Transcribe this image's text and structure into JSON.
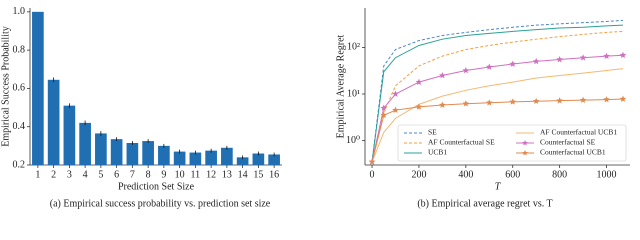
{
  "chart_data": [
    {
      "type": "bar",
      "caption": "(a) Empirical success probability vs. prediction set size",
      "xlabel": "Prediction Set Size",
      "ylabel": "Empirical Success Probability",
      "categories": [
        "1",
        "2",
        "3",
        "4",
        "5",
        "6",
        "7",
        "8",
        "9",
        "10",
        "11",
        "12",
        "13",
        "14",
        "15",
        "16"
      ],
      "values": [
        1.0,
        0.645,
        0.51,
        0.42,
        0.365,
        0.335,
        0.315,
        0.325,
        0.3,
        0.27,
        0.265,
        0.275,
        0.29,
        0.24,
        0.26,
        0.255
      ],
      "errors": [
        0,
        0.012,
        0.012,
        0.012,
        0.012,
        0.01,
        0.01,
        0.01,
        0.01,
        0.01,
        0.01,
        0.01,
        0.01,
        0.01,
        0.01,
        0.01
      ],
      "color": "#1f6fb2",
      "ylim": [
        0.2,
        1.02
      ],
      "yticks": [
        0.2,
        0.4,
        0.6,
        0.8,
        {
          "value": 1,
          "label": "1.0"
        }
      ]
    },
    {
      "type": "line",
      "caption": "(b) Empirical average regret vs. T",
      "xlabel": "T",
      "ylabel": "Empirical Average Regret",
      "log_y": true,
      "legend": "lower right",
      "x": [
        0,
        50,
        100,
        200,
        300,
        400,
        500,
        600,
        700,
        800,
        900,
        1000,
        1070
      ],
      "xlim": [
        -30,
        1100
      ],
      "xticks": [
        0,
        200,
        400,
        600,
        800,
        1000
      ],
      "ylim": [
        0.3,
        700
      ],
      "yticks": [
        {
          "value": 1,
          "label": "10⁰"
        },
        {
          "value": 10,
          "label": "10¹"
        },
        {
          "value": 100,
          "label": "10²"
        }
      ],
      "series": [
        {
          "name": "SE",
          "color": "#4a86c8",
          "dash": "dashed",
          "values": [
            0.35,
            40,
            90,
            140,
            180,
            210,
            240,
            270,
            300,
            320,
            340,
            360,
            380
          ]
        },
        {
          "name": "AF Counterfactual SE",
          "color": "#f0a040",
          "dash": "dashed",
          "values": [
            0.35,
            4,
            15,
            40,
            65,
            90,
            110,
            130,
            150,
            170,
            190,
            210,
            220
          ]
        },
        {
          "name": "UCB1",
          "color": "#2aa198",
          "dash": "solid",
          "values": [
            0.35,
            30,
            60,
            110,
            150,
            180,
            200,
            220,
            240,
            260,
            270,
            290,
            300
          ]
        },
        {
          "name": "AF Counterfactual UCB1",
          "color": "#f5b870",
          "dash": "solid",
          "values": [
            0.35,
            1.5,
            3,
            6,
            9,
            12,
            15,
            18,
            22,
            25,
            28,
            32,
            35
          ]
        },
        {
          "name": "Counterfactual SE",
          "color": "#d070c0",
          "dash": "solid",
          "marker": "star",
          "values": [
            0.35,
            5,
            10,
            18,
            25,
            32,
            38,
            44,
            50,
            55,
            60,
            65,
            68
          ]
        },
        {
          "name": "Counterfactual UCB1",
          "color": "#e08a50",
          "dash": "solid",
          "marker": "star",
          "values": [
            0.35,
            3.5,
            4.5,
            5.3,
            5.8,
            6.2,
            6.5,
            6.8,
            7,
            7.2,
            7.4,
            7.6,
            7.8
          ]
        }
      ]
    }
  ]
}
